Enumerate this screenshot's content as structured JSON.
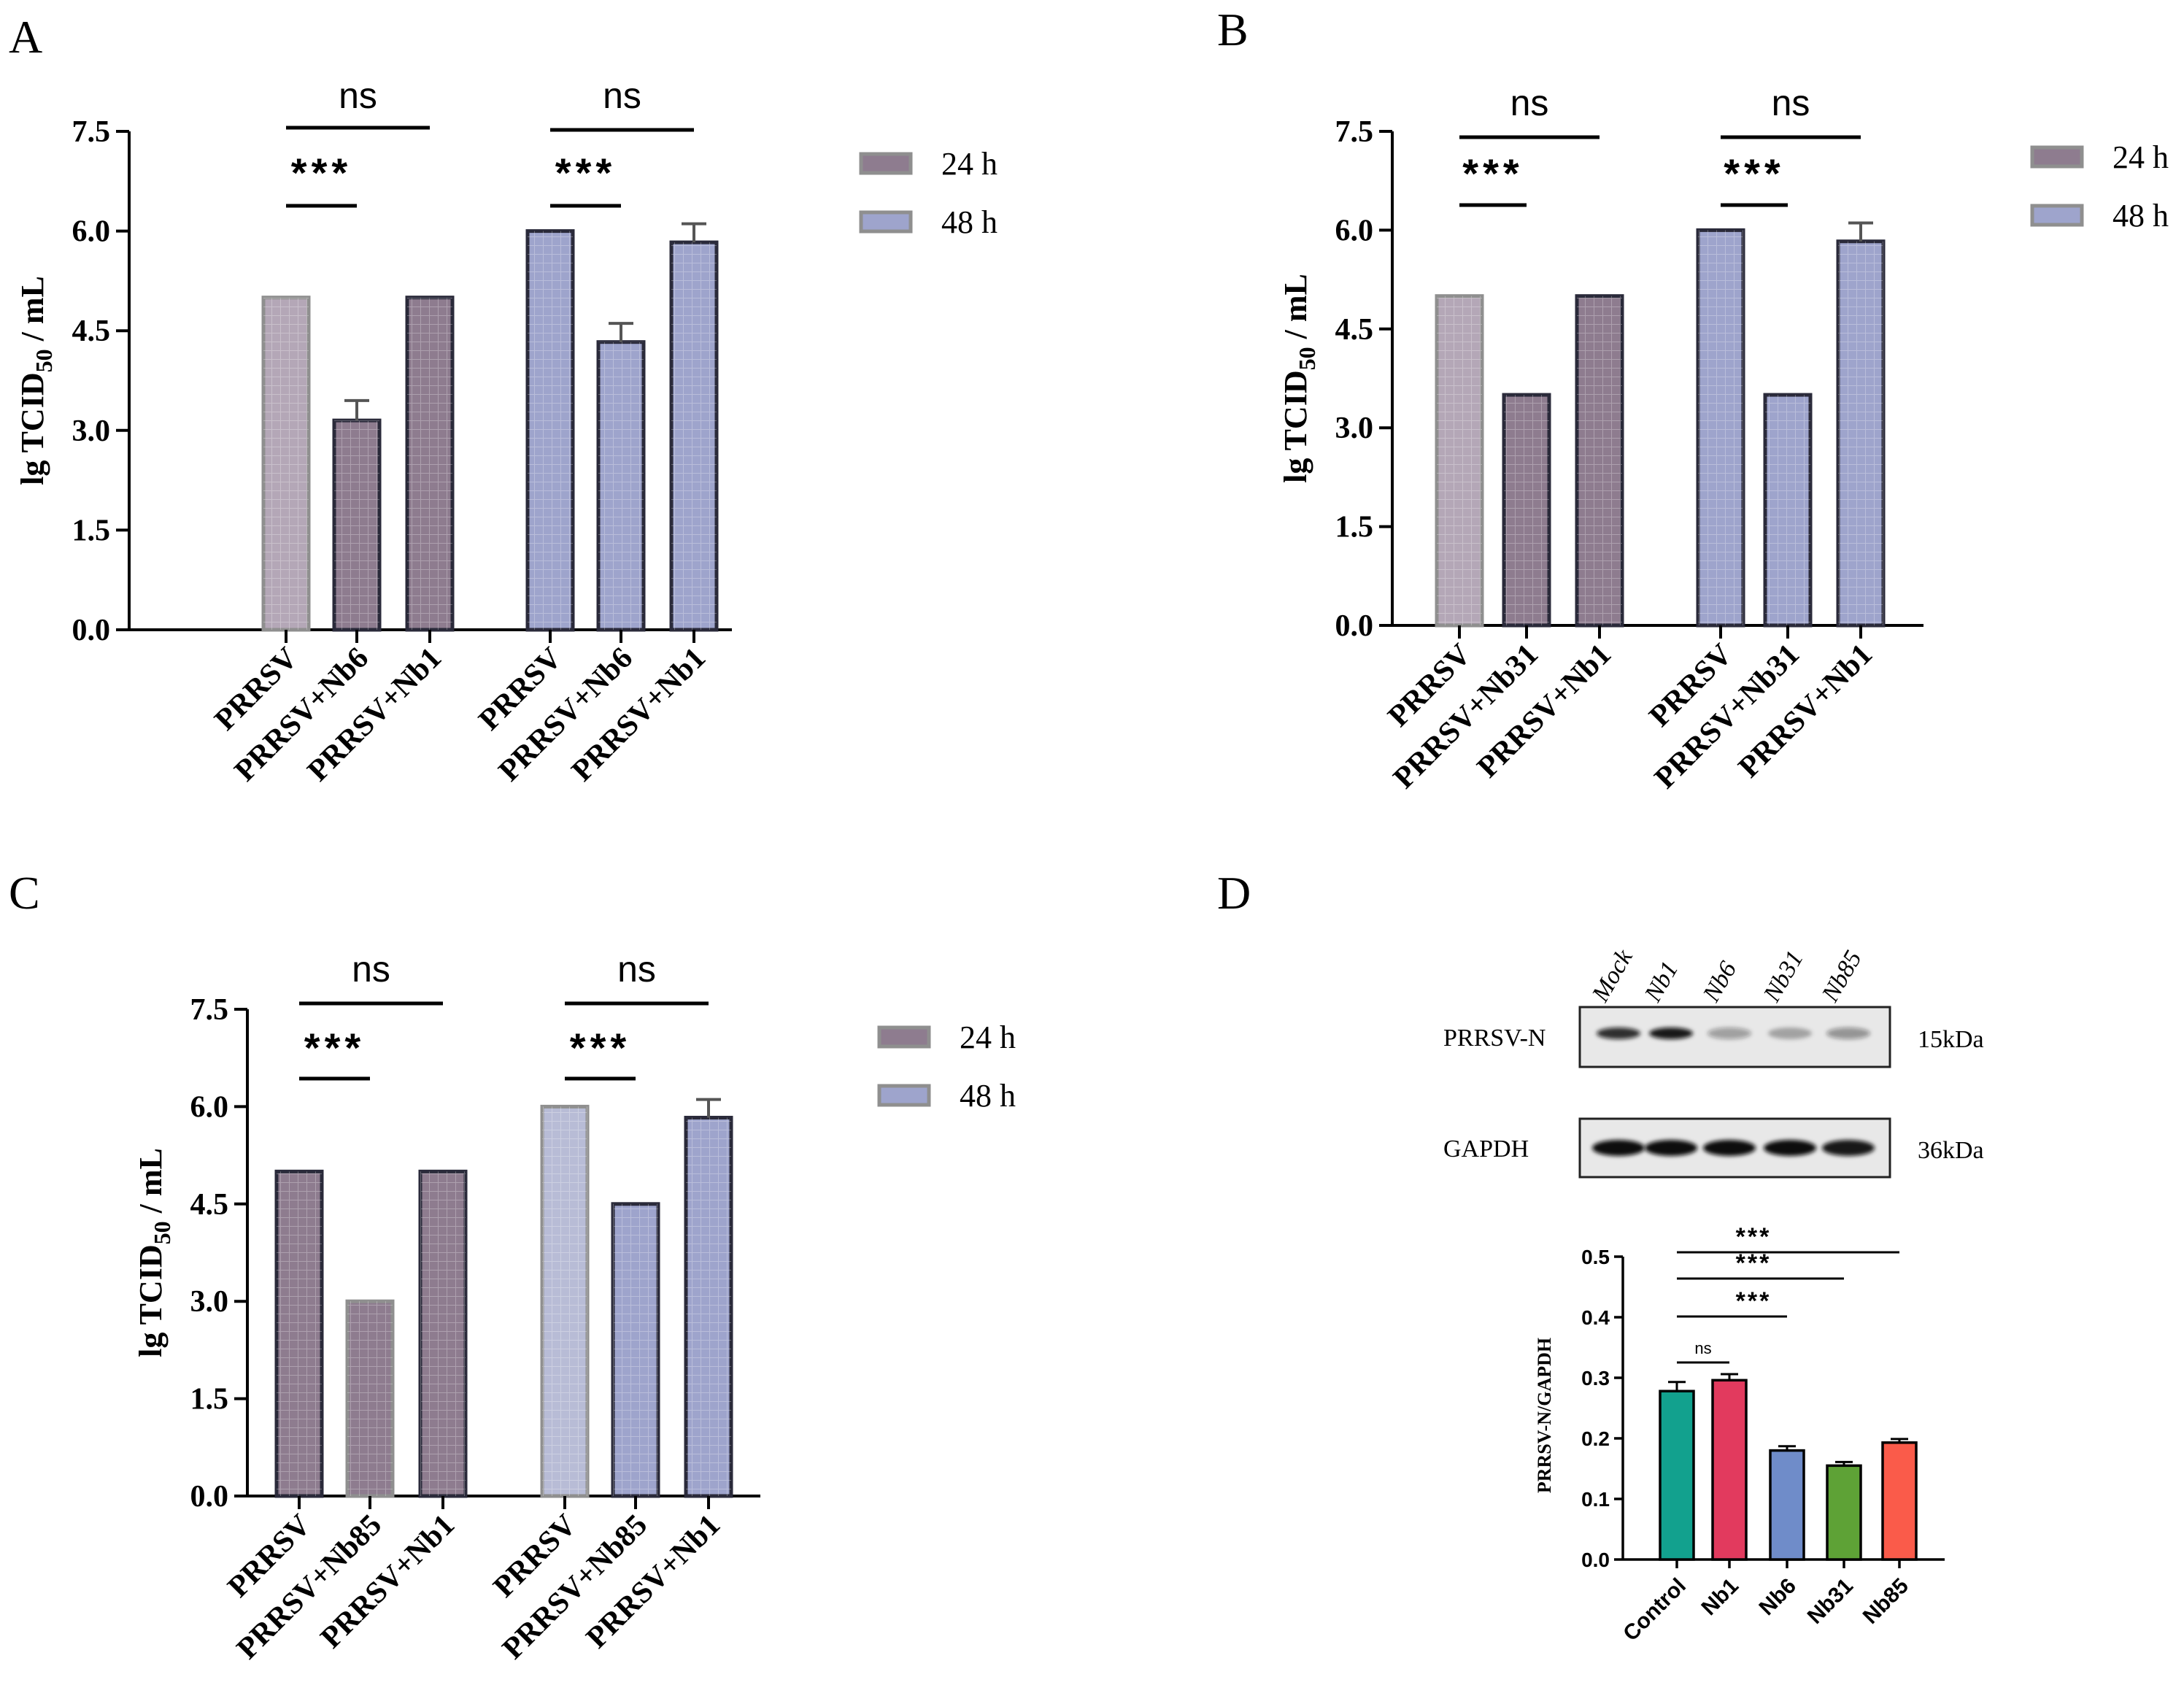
{
  "colors": {
    "h24_pale": "#b4a7b7",
    "h24_dark": "#8e7c8f",
    "h48_pale": "#b8bcd6",
    "h48_dark": "#9ea4cc",
    "edge_gray": "#8f8f8f",
    "edge_dark": "#2a2a3a",
    "bar_control": "#12a18e",
    "bar_nb1": "#e23a5e",
    "bar_nb6": "#6f8cc9",
    "bar_nb31": "#5ea236",
    "bar_nb85": "#fa5b4a"
  },
  "chart_data": [
    {
      "panel": "A",
      "type": "bar",
      "ylabel_main": "lg TCID",
      "ylabel_sub": "50",
      "ylabel_tail": " / mL",
      "ylim": [
        0,
        7.5
      ],
      "yticks": [
        "0.0",
        "1.5",
        "3.0",
        "4.5",
        "6.0",
        "7.5"
      ],
      "legend": [
        "24 h",
        "48 h"
      ],
      "groups": [
        {
          "name": "24 h",
          "categories": [
            "PRRSV",
            "PRRSV+Nb6",
            "PRRSV+Nb1"
          ],
          "values": [
            5.0,
            3.15,
            5.0
          ],
          "errors": [
            0,
            0.3,
            0
          ],
          "styles": [
            "pale",
            "dark",
            "dark"
          ],
          "sig": [
            {
              "label": "***",
              "from": 0,
              "to": 1
            },
            {
              "label": "ns",
              "from": 0,
              "to": 2
            }
          ]
        },
        {
          "name": "48 h",
          "categories": [
            "PRRSV",
            "PRRSV+Nb6",
            "PRRSV+Nb1"
          ],
          "values": [
            6.0,
            4.33,
            5.83
          ],
          "errors": [
            0,
            0.28,
            0.28
          ],
          "styles": [
            "dark",
            "dark",
            "dark"
          ],
          "sig": [
            {
              "label": "***",
              "from": 0,
              "to": 1
            },
            {
              "label": "ns",
              "from": 0,
              "to": 2
            }
          ]
        }
      ]
    },
    {
      "panel": "B",
      "type": "bar",
      "ylabel_main": "lg TCID",
      "ylabel_sub": "50",
      "ylabel_tail": " / mL",
      "ylim": [
        0,
        7.5
      ],
      "yticks": [
        "0.0",
        "1.5",
        "3.0",
        "4.5",
        "6.0",
        "7.5"
      ],
      "legend": [
        "24 h",
        "48 h"
      ],
      "groups": [
        {
          "name": "24 h",
          "categories": [
            "PRRSV",
            "PRRSV+Nb31",
            "PRRSV+Nb1"
          ],
          "values": [
            5.0,
            3.5,
            5.0
          ],
          "errors": [
            0,
            0,
            0
          ],
          "styles": [
            "pale",
            "dark",
            "dark"
          ],
          "sig": [
            {
              "label": "***",
              "from": 0,
              "to": 1
            },
            {
              "label": "ns",
              "from": 0,
              "to": 2
            }
          ]
        },
        {
          "name": "48 h",
          "categories": [
            "PRRSV",
            "PRRSV+Nb31",
            "PRRSV+Nb1"
          ],
          "values": [
            6.0,
            3.5,
            5.83
          ],
          "errors": [
            0,
            0,
            0.28
          ],
          "styles": [
            "dark",
            "dark",
            "dark"
          ],
          "sig": [
            {
              "label": "***",
              "from": 0,
              "to": 1
            },
            {
              "label": "ns",
              "from": 0,
              "to": 2
            }
          ]
        }
      ]
    },
    {
      "panel": "C",
      "type": "bar",
      "ylabel_main": "lg TCID",
      "ylabel_sub": "50",
      "ylabel_tail": " / mL",
      "ylim": [
        0,
        7.5
      ],
      "yticks": [
        "0.0",
        "1.5",
        "3.0",
        "4.5",
        "6.0",
        "7.5"
      ],
      "legend": [
        "24 h",
        "48 h"
      ],
      "groups": [
        {
          "name": "24 h",
          "categories": [
            "PRRSV",
            "PRRSV+Nb85",
            "PRRSV+Nb1"
          ],
          "values": [
            5.0,
            3.0,
            5.0
          ],
          "errors": [
            0,
            0,
            0
          ],
          "styles": [
            "dark",
            "gray",
            "dark"
          ],
          "sig": [
            {
              "label": "***",
              "from": 0,
              "to": 1
            },
            {
              "label": "ns",
              "from": 0,
              "to": 2
            }
          ]
        },
        {
          "name": "48 h",
          "categories": [
            "PRRSV",
            "PRRSV+Nb85",
            "PRRSV+Nb1"
          ],
          "values": [
            6.0,
            4.5,
            5.83
          ],
          "errors": [
            0,
            0,
            0.28
          ],
          "styles": [
            "pale",
            "dark",
            "dark"
          ],
          "sig": [
            {
              "label": "***",
              "from": 0,
              "to": 1
            },
            {
              "label": "ns",
              "from": 0,
              "to": 2
            }
          ]
        }
      ]
    },
    {
      "panel": "D",
      "type": "bar",
      "ylabel": "PRRSV-N/GAPDH",
      "ylim": [
        0,
        0.5
      ],
      "yticks": [
        "0.0",
        "0.1",
        "0.2",
        "0.3",
        "0.4",
        "0.5"
      ],
      "categories": [
        "Control",
        "Nb1",
        "Nb6",
        "Nb31",
        "Nb85"
      ],
      "values": [
        0.278,
        0.296,
        0.18,
        0.155,
        0.193
      ],
      "errors": [
        0.015,
        0.01,
        0.007,
        0.006,
        0.006
      ],
      "sig": [
        {
          "label": "ns",
          "from": 0,
          "to": 1
        },
        {
          "label": "***",
          "from": 0,
          "to": 2
        },
        {
          "label": "***",
          "from": 0,
          "to": 3
        },
        {
          "label": "***",
          "from": 0,
          "to": 4
        }
      ]
    }
  ],
  "blot": {
    "lanes": [
      "Mock",
      "Nb1",
      "Nb6",
      "Nb31",
      "Nb85"
    ],
    "rows": [
      {
        "label": "PRRSV-N",
        "size": "15kDa",
        "intensity": [
          0.85,
          0.95,
          0.35,
          0.3,
          0.4
        ]
      },
      {
        "label": "GAPDH",
        "size": "36kDa",
        "intensity": [
          1.0,
          1.0,
          1.0,
          1.0,
          0.95
        ]
      }
    ]
  }
}
